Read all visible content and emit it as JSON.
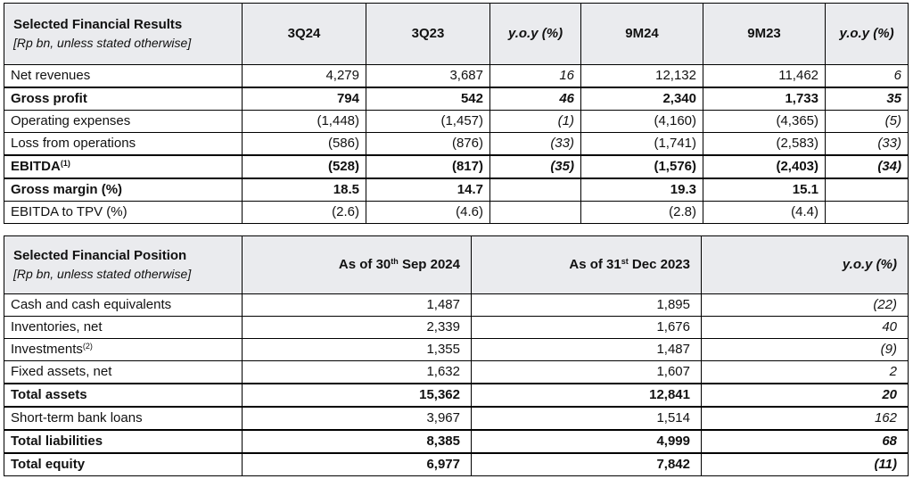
{
  "results": {
    "title": "Selected Financial Results",
    "subtitle": "[Rp bn, unless stated otherwise]",
    "columns": [
      "3Q24",
      "3Q23",
      "y.o.y (%)",
      "9M24",
      "9M23",
      "y.o.y (%)"
    ],
    "rows": [
      {
        "label": "Net revenues",
        "sup": "",
        "cells": [
          "4,279",
          "3,687",
          "16",
          "12,132",
          "11,462",
          "6"
        ]
      },
      {
        "label": "Gross profit",
        "sup": "",
        "cells": [
          "794",
          "542",
          "46",
          "2,340",
          "1,733",
          "35"
        ]
      },
      {
        "label": "Operating expenses",
        "sup": "",
        "cells": [
          "(1,448)",
          "(1,457)",
          "(1)",
          "(4,160)",
          "(4,365)",
          "(5)"
        ]
      },
      {
        "label": "Loss from operations",
        "sup": "",
        "cells": [
          "(586)",
          "(876)",
          "(33)",
          "(1,741)",
          "(2,583)",
          "(33)"
        ]
      },
      {
        "label": "EBITDA",
        "sup": "(1)",
        "cells": [
          "(528)",
          "(817)",
          "(35)",
          "(1,576)",
          "(2,403)",
          "(34)"
        ]
      },
      {
        "label": "Gross margin (%)",
        "sup": "",
        "cells": [
          "18.5",
          "14.7",
          "",
          "19.3",
          "15.1",
          ""
        ]
      },
      {
        "label": "EBITDA to TPV (%)",
        "sup": "",
        "cells": [
          "(2.6)",
          "(4.6)",
          "",
          "(2.8)",
          "(4.4)",
          ""
        ]
      }
    ]
  },
  "position": {
    "title": "Selected Financial Position",
    "subtitle": "[Rp bn, unless stated otherwise]",
    "col1": {
      "pre": "As of 30",
      "sup": "th",
      "post": " Sep 2024"
    },
    "col2": {
      "pre": "As of 31",
      "sup": "st",
      "post": " Dec 2023"
    },
    "col3": "y.o.y (%)",
    "rows": [
      {
        "label": "Cash and cash equivalents",
        "sup": "",
        "cells": [
          "1,487",
          "1,895",
          "(22)"
        ]
      },
      {
        "label": "Inventories, net",
        "sup": "",
        "cells": [
          "2,339",
          "1,676",
          "40"
        ]
      },
      {
        "label": "Investments",
        "sup": "(2)",
        "cells": [
          "1,355",
          "1,487",
          "(9)"
        ]
      },
      {
        "label": "Fixed assets, net",
        "sup": "",
        "cells": [
          "1,632",
          "1,607",
          "2"
        ]
      },
      {
        "label": "Total assets",
        "sup": "",
        "cells": [
          "15,362",
          "12,841",
          "20"
        ]
      },
      {
        "label": "Short-term bank loans",
        "sup": "",
        "cells": [
          "3,967",
          "1,514",
          "162"
        ]
      },
      {
        "label": "Total liabilities",
        "sup": "",
        "cells": [
          "8,385",
          "4,999",
          "68"
        ]
      },
      {
        "label": "Total equity",
        "sup": "",
        "cells": [
          "6,977",
          "7,842",
          "(11)"
        ]
      }
    ]
  }
}
